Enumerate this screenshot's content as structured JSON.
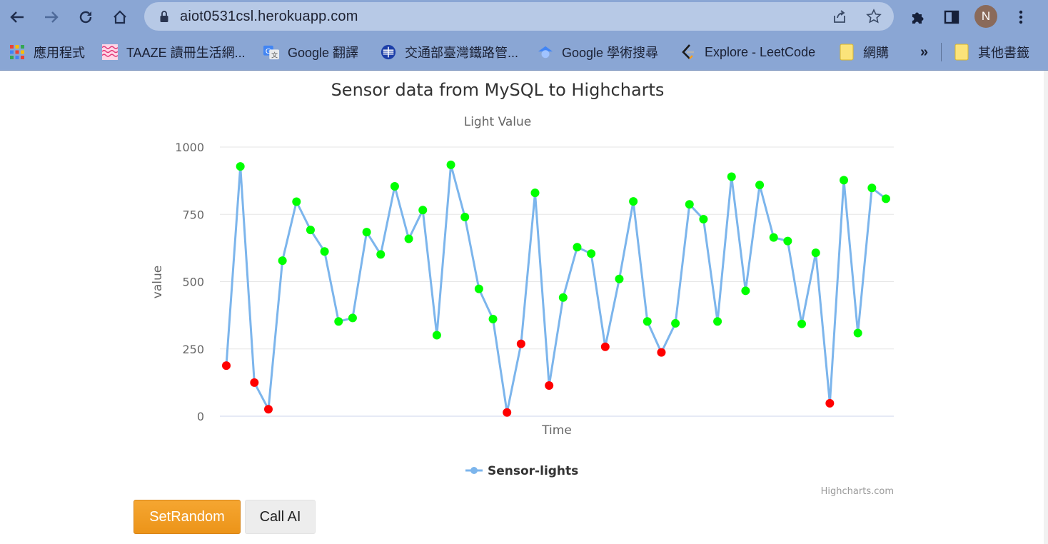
{
  "browser": {
    "url": "aiot0531csl.herokuapp.com",
    "profile_initial": "N",
    "bookmarks": [
      {
        "label": "應用程式",
        "icon": "apps-grid-icon"
      },
      {
        "label": "TAAZE 讀冊生活網...",
        "icon": "taaze-icon"
      },
      {
        "label": "Google 翻譯",
        "icon": "google-translate-icon"
      },
      {
        "label": "交通部臺灣鐵路管...",
        "icon": "railway-icon"
      },
      {
        "label": "Google 學術搜尋",
        "icon": "google-scholar-icon"
      },
      {
        "label": "Explore - LeetCode",
        "icon": "leetcode-icon"
      },
      {
        "label": "網購",
        "icon": "folder-icon"
      }
    ],
    "overflow_label": "»",
    "other_bookmarks": "其他書籤"
  },
  "chart_data": {
    "type": "line",
    "title": "Sensor data from MySQL to Highcharts",
    "subtitle": "Light Value",
    "xlabel": "Time",
    "ylabel": "value",
    "ylim": [
      0,
      1000
    ],
    "yticks": [
      "0",
      "250",
      "500",
      "750",
      "1000"
    ],
    "grid": true,
    "legend_position": "bottom-center",
    "credits": "Highcharts.com",
    "threshold": 300,
    "colors": {
      "line": "#7cb5ec",
      "high": "#00ff00",
      "low": "#ff0000"
    },
    "series": [
      {
        "name": "Sensor-lights",
        "values": [
          188,
          928,
          125,
          26,
          578,
          797,
          692,
          612,
          352,
          365,
          684,
          601,
          854,
          659,
          766,
          301,
          934,
          740,
          473,
          361,
          14,
          269,
          830,
          114,
          441,
          628,
          604,
          258,
          510,
          798,
          352,
          237,
          345,
          787,
          732,
          352,
          890,
          466,
          859,
          664,
          651,
          343,
          607,
          48,
          877,
          309,
          848,
          808
        ]
      }
    ]
  },
  "buttons": {
    "set_random": "SetRandom",
    "call_ai": "Call AI"
  }
}
